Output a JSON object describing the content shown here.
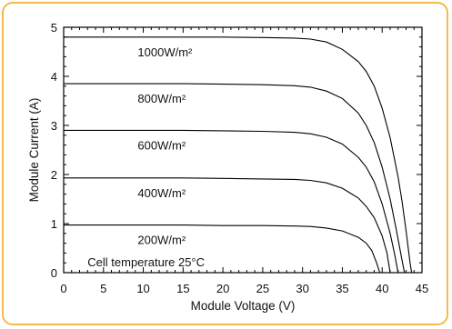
{
  "colors": {
    "frame": "#f5b94a",
    "axis": "#000000",
    "curve": "#000000",
    "background": "#ffffff"
  },
  "chart_data": {
    "type": "line",
    "title": "",
    "xlabel": "Module Voltage (V)",
    "ylabel": "Module Current (A)",
    "xlim": [
      0,
      45
    ],
    "ylim": [
      0,
      5
    ],
    "x_ticks": [
      "0",
      "5",
      "10",
      "15",
      "20",
      "25",
      "30",
      "35",
      "40",
      "45"
    ],
    "y_ticks": [
      "0",
      "1",
      "2",
      "3",
      "4",
      "5"
    ],
    "annotation": "Cell temperature 25°C",
    "grid": false,
    "series": [
      {
        "name": "1000W/m²",
        "points": [
          [
            0,
            4.8
          ],
          [
            5,
            4.8
          ],
          [
            10,
            4.8
          ],
          [
            15,
            4.8
          ],
          [
            20,
            4.8
          ],
          [
            25,
            4.79
          ],
          [
            29,
            4.78
          ],
          [
            31,
            4.76
          ],
          [
            33,
            4.7
          ],
          [
            35,
            4.55
          ],
          [
            37,
            4.3
          ],
          [
            38,
            4.1
          ],
          [
            39,
            3.8
          ],
          [
            40,
            3.35
          ],
          [
            41,
            2.75
          ],
          [
            42,
            1.95
          ],
          [
            42.5,
            1.45
          ],
          [
            43,
            0.85
          ],
          [
            43.5,
            0.2
          ],
          [
            43.7,
            0
          ]
        ]
      },
      {
        "name": "800W/m²",
        "points": [
          [
            0,
            3.85
          ],
          [
            5,
            3.85
          ],
          [
            10,
            3.85
          ],
          [
            15,
            3.85
          ],
          [
            20,
            3.84
          ],
          [
            25,
            3.83
          ],
          [
            29,
            3.81
          ],
          [
            31,
            3.78
          ],
          [
            33,
            3.7
          ],
          [
            35,
            3.55
          ],
          [
            37,
            3.25
          ],
          [
            38,
            3.0
          ],
          [
            39,
            2.65
          ],
          [
            40,
            2.15
          ],
          [
            41,
            1.5
          ],
          [
            41.8,
            0.85
          ],
          [
            42.5,
            0.25
          ],
          [
            42.8,
            0
          ]
        ]
      },
      {
        "name": "600W/m²",
        "points": [
          [
            0,
            2.9
          ],
          [
            5,
            2.9
          ],
          [
            10,
            2.9
          ],
          [
            15,
            2.9
          ],
          [
            20,
            2.89
          ],
          [
            25,
            2.88
          ],
          [
            29,
            2.86
          ],
          [
            31,
            2.83
          ],
          [
            33,
            2.76
          ],
          [
            35,
            2.62
          ],
          [
            37,
            2.35
          ],
          [
            38,
            2.15
          ],
          [
            39,
            1.85
          ],
          [
            40,
            1.4
          ],
          [
            41,
            0.8
          ],
          [
            41.6,
            0.35
          ],
          [
            42,
            0
          ]
        ]
      },
      {
        "name": "400W/m²",
        "points": [
          [
            0,
            1.93
          ],
          [
            5,
            1.93
          ],
          [
            10,
            1.93
          ],
          [
            15,
            1.93
          ],
          [
            20,
            1.92
          ],
          [
            25,
            1.91
          ],
          [
            29,
            1.9
          ],
          [
            31,
            1.88
          ],
          [
            33,
            1.83
          ],
          [
            35,
            1.72
          ],
          [
            37,
            1.52
          ],
          [
            38,
            1.35
          ],
          [
            39,
            1.12
          ],
          [
            40,
            0.75
          ],
          [
            40.6,
            0.4
          ],
          [
            41,
            0
          ]
        ]
      },
      {
        "name": "200W/m²",
        "points": [
          [
            0,
            0.97
          ],
          [
            5,
            0.97
          ],
          [
            10,
            0.97
          ],
          [
            15,
            0.97
          ],
          [
            20,
            0.96
          ],
          [
            25,
            0.96
          ],
          [
            29,
            0.95
          ],
          [
            31,
            0.94
          ],
          [
            33,
            0.91
          ],
          [
            35,
            0.85
          ],
          [
            37,
            0.72
          ],
          [
            38,
            0.6
          ],
          [
            38.7,
            0.45
          ],
          [
            39.3,
            0.2
          ],
          [
            39.7,
            0
          ]
        ]
      }
    ]
  }
}
